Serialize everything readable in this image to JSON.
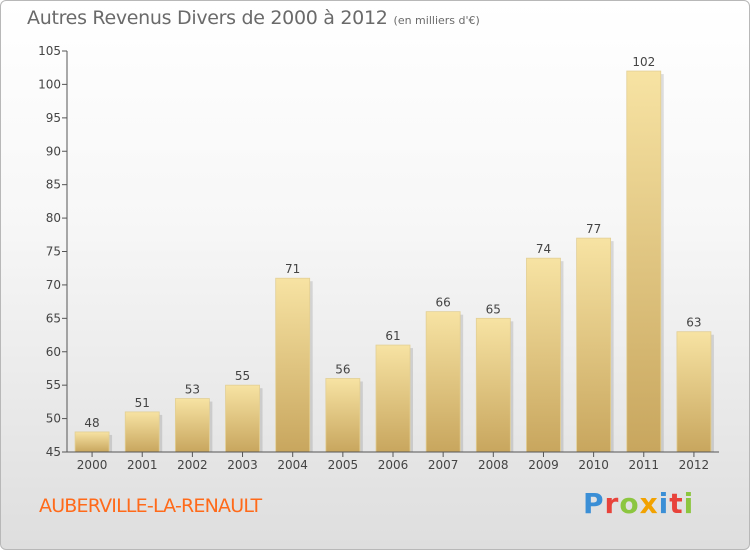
{
  "header": {
    "title": "Autres Revenus Divers de 2000 à 2012",
    "subtitle": "(en milliers d'€)"
  },
  "footer": {
    "commune": "AUBERVILLE-LA-RENAULT",
    "logo_text": "Proxiti"
  },
  "colors": {
    "bar_light": "#f7e3a3",
    "bar_dark": "#c8a65e",
    "commune_text": "#ff6a1a",
    "logo_letters": [
      "#3b8fd6",
      "#e8433b",
      "#8cc63f",
      "#f2a200",
      "#3b8fd6",
      "#e8433b",
      "#8cc63f"
    ]
  },
  "chart_data": {
    "type": "bar",
    "title": "Autres Revenus Divers de 2000 à 2012",
    "subtitle": "(en milliers d'€)",
    "categories": [
      "2000",
      "2001",
      "2002",
      "2003",
      "2004",
      "2005",
      "2006",
      "2007",
      "2008",
      "2009",
      "2010",
      "2011",
      "2012"
    ],
    "values": [
      48,
      51,
      53,
      55,
      71,
      56,
      61,
      66,
      65,
      74,
      77,
      102,
      63
    ],
    "ylim": [
      45,
      105
    ],
    "yticks": [
      45,
      50,
      55,
      60,
      65,
      70,
      75,
      80,
      85,
      90,
      95,
      100,
      105
    ],
    "data_labels": true,
    "grid": false
  }
}
